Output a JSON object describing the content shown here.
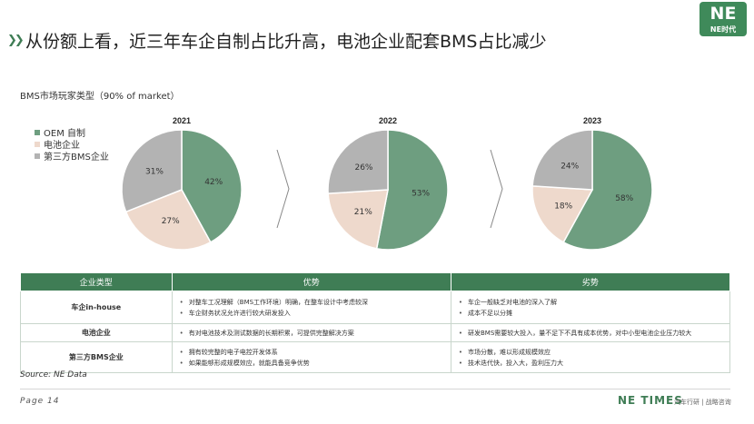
{
  "logo": {
    "mark": "NE",
    "text": "NE时代"
  },
  "title": "从份额上看，近三年车企自制占比升高，电池企业配套BMS占比减少",
  "subtitle": "BMS市场玩家类型（90% of market）",
  "legend": [
    {
      "label": "OEM 自制",
      "color": "#6e9e80"
    },
    {
      "label": "电池企业",
      "color": "#eed9cc"
    },
    {
      "label": "第三方BMS企业",
      "color": "#b3b3b3"
    }
  ],
  "chart_data": [
    {
      "type": "pie",
      "title": "2021",
      "labels": [
        "OEM 自制",
        "电池企业",
        "第三方BMS企业"
      ],
      "values": [
        42,
        27,
        31
      ],
      "value_labels": [
        "42%",
        "27%",
        "31%"
      ]
    },
    {
      "type": "pie",
      "title": "2022",
      "labels": [
        "OEM 自制",
        "电池企业",
        "第三方BMS企业"
      ],
      "values": [
        53,
        21,
        26
      ],
      "value_labels": [
        "53%",
        "21%",
        "26%"
      ]
    },
    {
      "type": "pie",
      "title": "2023",
      "labels": [
        "OEM 自制",
        "电池企业",
        "第三方BMS企业"
      ],
      "values": [
        58,
        18,
        24
      ],
      "value_labels": [
        "58%",
        "18%",
        "24%"
      ]
    }
  ],
  "table": {
    "headers": [
      "企业类型",
      "优势",
      "劣势"
    ],
    "rows": [
      {
        "type": "车企in-house",
        "pros": [
          "对整车工况理解（BMS工作环境）明确，在整车设计中考虑较深",
          "车企财务状况允许进行较大研发投入"
        ],
        "cons": [
          "车企一般缺乏对电池的深入了解",
          "成本不足以分摊"
        ]
      },
      {
        "type": "电池企业",
        "pros": [
          "有对电池技术及测试数据的长期积累，可提供完整解决方案"
        ],
        "cons": [
          "研发BMS需要较大投入，量不足下不具有成本优势，对中小型电池企业压力较大"
        ]
      },
      {
        "type": "第三方BMS企业",
        "pros": [
          "拥有较完整的电子电控开发体系",
          "如果能够形成规模效应，就能具备竞争优势"
        ],
        "cons": [
          "市场分散，难以形成规模效应",
          "技术迭代快，投入大，盈利压力大"
        ]
      }
    ]
  },
  "source": "Source: NE Data",
  "page": "Page 14",
  "brand": "NE TIMES",
  "brand_tag": "汽车行研 | 战略咨询"
}
